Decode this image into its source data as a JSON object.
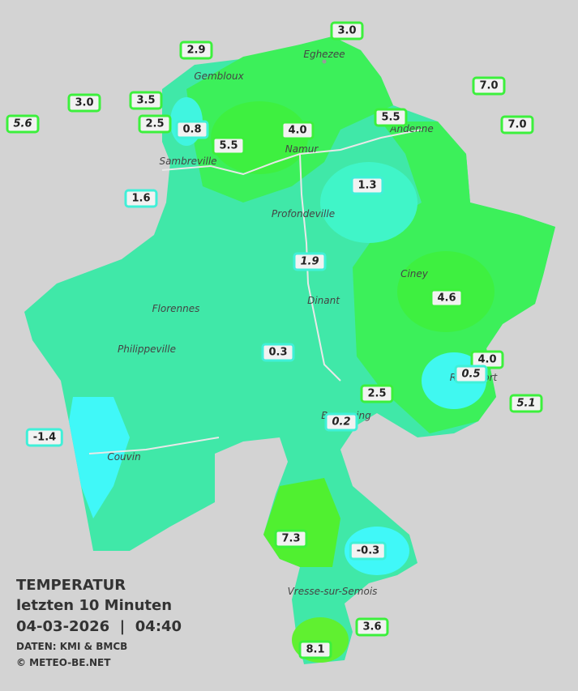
{
  "legend": {
    "title": "TEMPERATUR",
    "period": "letzten 10 Minuten",
    "datetime": "04-03-2026  |  04:40",
    "source": "DATEN: KMI & BMCB",
    "copyright": "© METEO-BE.NET"
  },
  "cities": [
    "Eghezee",
    "Gembloux",
    "Andenne",
    "Namur",
    "Sambreville",
    "Profondeville",
    "Ciney",
    "Dinant",
    "Florennes",
    "Philippeville",
    "Rochefort",
    "Beauraing",
    "Couvin",
    "Vresse-sur-Semois"
  ],
  "stations": [
    {
      "label": "3.0",
      "color": "#3cf03c",
      "italic": false
    },
    {
      "label": "2.9",
      "color": "#3cf03c",
      "italic": false
    },
    {
      "label": "7.0",
      "color": "#3cf03c",
      "italic": false
    },
    {
      "label": "3.0",
      "color": "#3cf03c",
      "italic": false
    },
    {
      "label": "3.5",
      "color": "#3cf03c",
      "italic": false
    },
    {
      "label": "5.6",
      "color": "#3cf03c",
      "italic": true
    },
    {
      "label": "2.5",
      "color": "#3cf03c",
      "italic": false
    },
    {
      "label": "0.8",
      "color": "#40f0d8",
      "italic": false
    },
    {
      "label": "4.0",
      "color": "#3cf03c",
      "italic": false
    },
    {
      "label": "5.5",
      "color": "#3cf03c",
      "italic": false
    },
    {
      "label": "7.0",
      "color": "#3cf03c",
      "italic": false
    },
    {
      "label": "5.5",
      "color": "#3cf03c",
      "italic": false
    },
    {
      "label": "1.3",
      "color": "#40f0d8",
      "italic": false
    },
    {
      "label": "1.6",
      "color": "#40f0d8",
      "italic": false
    },
    {
      "label": "1.9",
      "color": "#40f0d8",
      "italic": true
    },
    {
      "label": "4.6",
      "color": "#3cf03c",
      "italic": false
    },
    {
      "label": "0.3",
      "color": "#40f0d8",
      "italic": false
    },
    {
      "label": "4.0",
      "color": "#3cf03c",
      "italic": false
    },
    {
      "label": "0.5",
      "color": "#40f0d8",
      "italic": true
    },
    {
      "label": "2.5",
      "color": "#3cf03c",
      "italic": false
    },
    {
      "label": "5.1",
      "color": "#3cf03c",
      "italic": true
    },
    {
      "label": "0.2",
      "color": "#40f0d8",
      "italic": true
    },
    {
      "label": "-1.4",
      "color": "#40f0d8",
      "italic": false
    },
    {
      "label": "7.3",
      "color": "#3cf03c",
      "italic": false
    },
    {
      "label": "-0.3",
      "color": "#40f0d8",
      "italic": false
    },
    {
      "label": "3.6",
      "color": "#3cf03c",
      "italic": false
    },
    {
      "label": "8.1",
      "color": "#3cf03c",
      "italic": false
    }
  ]
}
